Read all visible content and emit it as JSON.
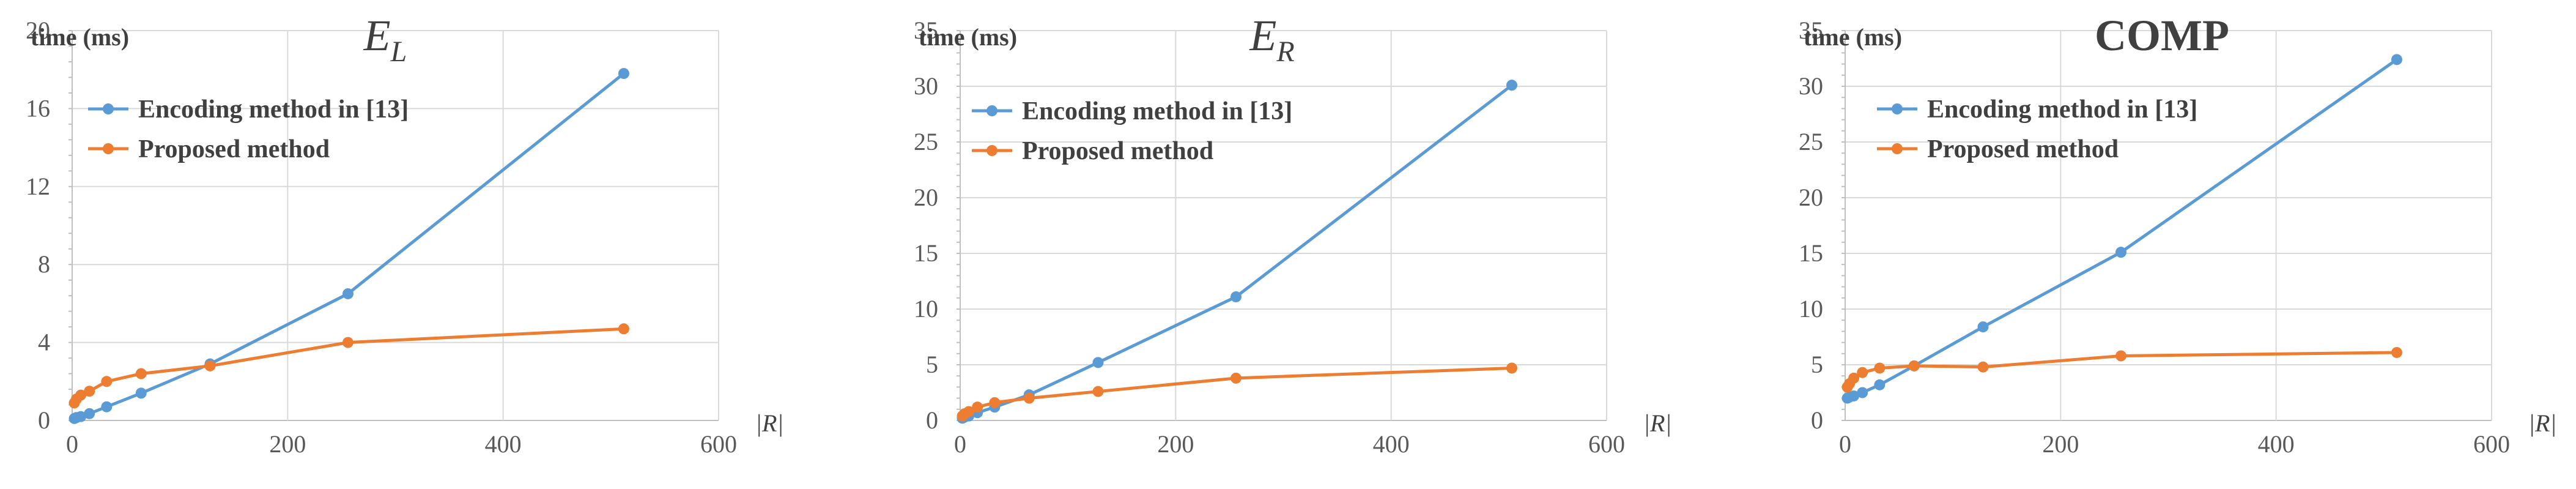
{
  "colors": {
    "encoding": "#5b9bd5",
    "proposed": "#ed7d31"
  },
  "chart_data": [
    {
      "type": "line",
      "title": "E",
      "title_subscript": "L",
      "ylabel": "time (ms)",
      "xlabel": "|R|",
      "xlim": [
        0,
        600
      ],
      "ylim": [
        0,
        20
      ],
      "xticks": [
        0,
        200,
        400,
        600
      ],
      "yticks": [
        0,
        4,
        8,
        12,
        16,
        20
      ],
      "grid": true,
      "legend_position": "top-left",
      "series": [
        {
          "name": "Encoding method in [13]",
          "color_key": "encoding",
          "x": [
            2,
            4,
            8,
            16,
            32,
            64,
            128,
            256,
            512
          ],
          "y": [
            0.1,
            0.15,
            0.2,
            0.35,
            0.7,
            1.4,
            2.9,
            6.5,
            17.8
          ]
        },
        {
          "name": "Proposed method",
          "color_key": "proposed",
          "x": [
            2,
            4,
            8,
            16,
            32,
            64,
            128,
            256,
            512
          ],
          "y": [
            0.9,
            1.1,
            1.3,
            1.5,
            2.0,
            2.4,
            2.8,
            4.0,
            4.7
          ]
        }
      ]
    },
    {
      "type": "line",
      "title": "E",
      "title_subscript": "R",
      "ylabel": "time (ms)",
      "xlabel": "|R|",
      "xlim": [
        0,
        600
      ],
      "ylim": [
        0,
        35
      ],
      "xticks": [
        0,
        200,
        400,
        600
      ],
      "yticks": [
        0,
        5,
        10,
        15,
        20,
        25,
        30,
        35
      ],
      "grid": true,
      "legend_position": "top-left",
      "series": [
        {
          "name": "Encoding method in [13]",
          "color_key": "encoding",
          "x": [
            2,
            4,
            8,
            16,
            32,
            64,
            128,
            256,
            512
          ],
          "y": [
            0.2,
            0.3,
            0.4,
            0.7,
            1.2,
            2.3,
            5.2,
            11.1,
            30.1
          ]
        },
        {
          "name": "Proposed method",
          "color_key": "proposed",
          "x": [
            2,
            4,
            8,
            16,
            32,
            64,
            128,
            256,
            512
          ],
          "y": [
            0.4,
            0.6,
            0.8,
            1.2,
            1.6,
            2.0,
            2.6,
            3.8,
            4.7
          ]
        }
      ]
    },
    {
      "type": "line",
      "title": "COMP",
      "title_subscript": "",
      "ylabel": "time (ms)",
      "xlabel": "|R|",
      "xlim": [
        0,
        600
      ],
      "ylim": [
        0,
        35
      ],
      "xticks": [
        0,
        200,
        400,
        600
      ],
      "yticks": [
        0,
        5,
        10,
        15,
        20,
        25,
        30,
        35
      ],
      "grid": true,
      "legend_position": "top-left",
      "series": [
        {
          "name": "Encoding method in [13]",
          "color_key": "encoding",
          "x": [
            2,
            4,
            8,
            16,
            32,
            64,
            128,
            256,
            512
          ],
          "y": [
            2.0,
            2.1,
            2.2,
            2.5,
            3.2,
            4.9,
            8.4,
            15.1,
            32.4
          ]
        },
        {
          "name": "Proposed method",
          "color_key": "proposed",
          "x": [
            2,
            4,
            8,
            16,
            32,
            64,
            128,
            256,
            512
          ],
          "y": [
            3.0,
            3.3,
            3.8,
            4.3,
            4.7,
            4.9,
            4.8,
            5.8,
            6.1
          ]
        }
      ]
    }
  ]
}
